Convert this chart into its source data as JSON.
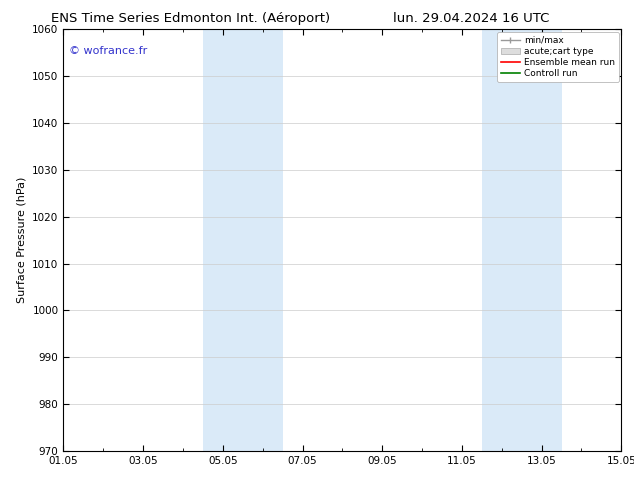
{
  "title_left": "ENS Time Series Edmonton Int. (Aéroport)",
  "title_right": "lun. 29.04.2024 16 UTC",
  "ylabel": "Surface Pressure (hPa)",
  "watermark": "© wofrance.fr",
  "watermark_color": "#3333cc",
  "ylim": [
    970,
    1060
  ],
  "yticks": [
    970,
    980,
    990,
    1000,
    1010,
    1020,
    1030,
    1040,
    1050,
    1060
  ],
  "xtick_labels": [
    "01.05",
    "03.05",
    "05.05",
    "07.05",
    "09.05",
    "11.05",
    "13.05",
    "15.05"
  ],
  "xmin": 0,
  "xmax": 14,
  "xtick_positions": [
    0,
    2,
    4,
    6,
    8,
    10,
    12,
    14
  ],
  "shaded_bands": [
    {
      "xmin": 3.5,
      "xmax": 5.5
    },
    {
      "xmin": 10.5,
      "xmax": 12.5
    }
  ],
  "shade_color": "#daeaf8",
  "background_color": "#ffffff",
  "grid_color": "#cccccc",
  "legend_entries": [
    {
      "label": "min/max",
      "color": "#aaaaaa"
    },
    {
      "label": "acute;cart type",
      "color": "#cccccc"
    },
    {
      "label": "Ensemble mean run",
      "color": "#ff0000"
    },
    {
      "label": "Controll run",
      "color": "#008000"
    }
  ],
  "title_fontsize": 9.5,
  "ylabel_fontsize": 8,
  "tick_fontsize": 7.5,
  "watermark_fontsize": 8,
  "legend_fontsize": 6.5
}
